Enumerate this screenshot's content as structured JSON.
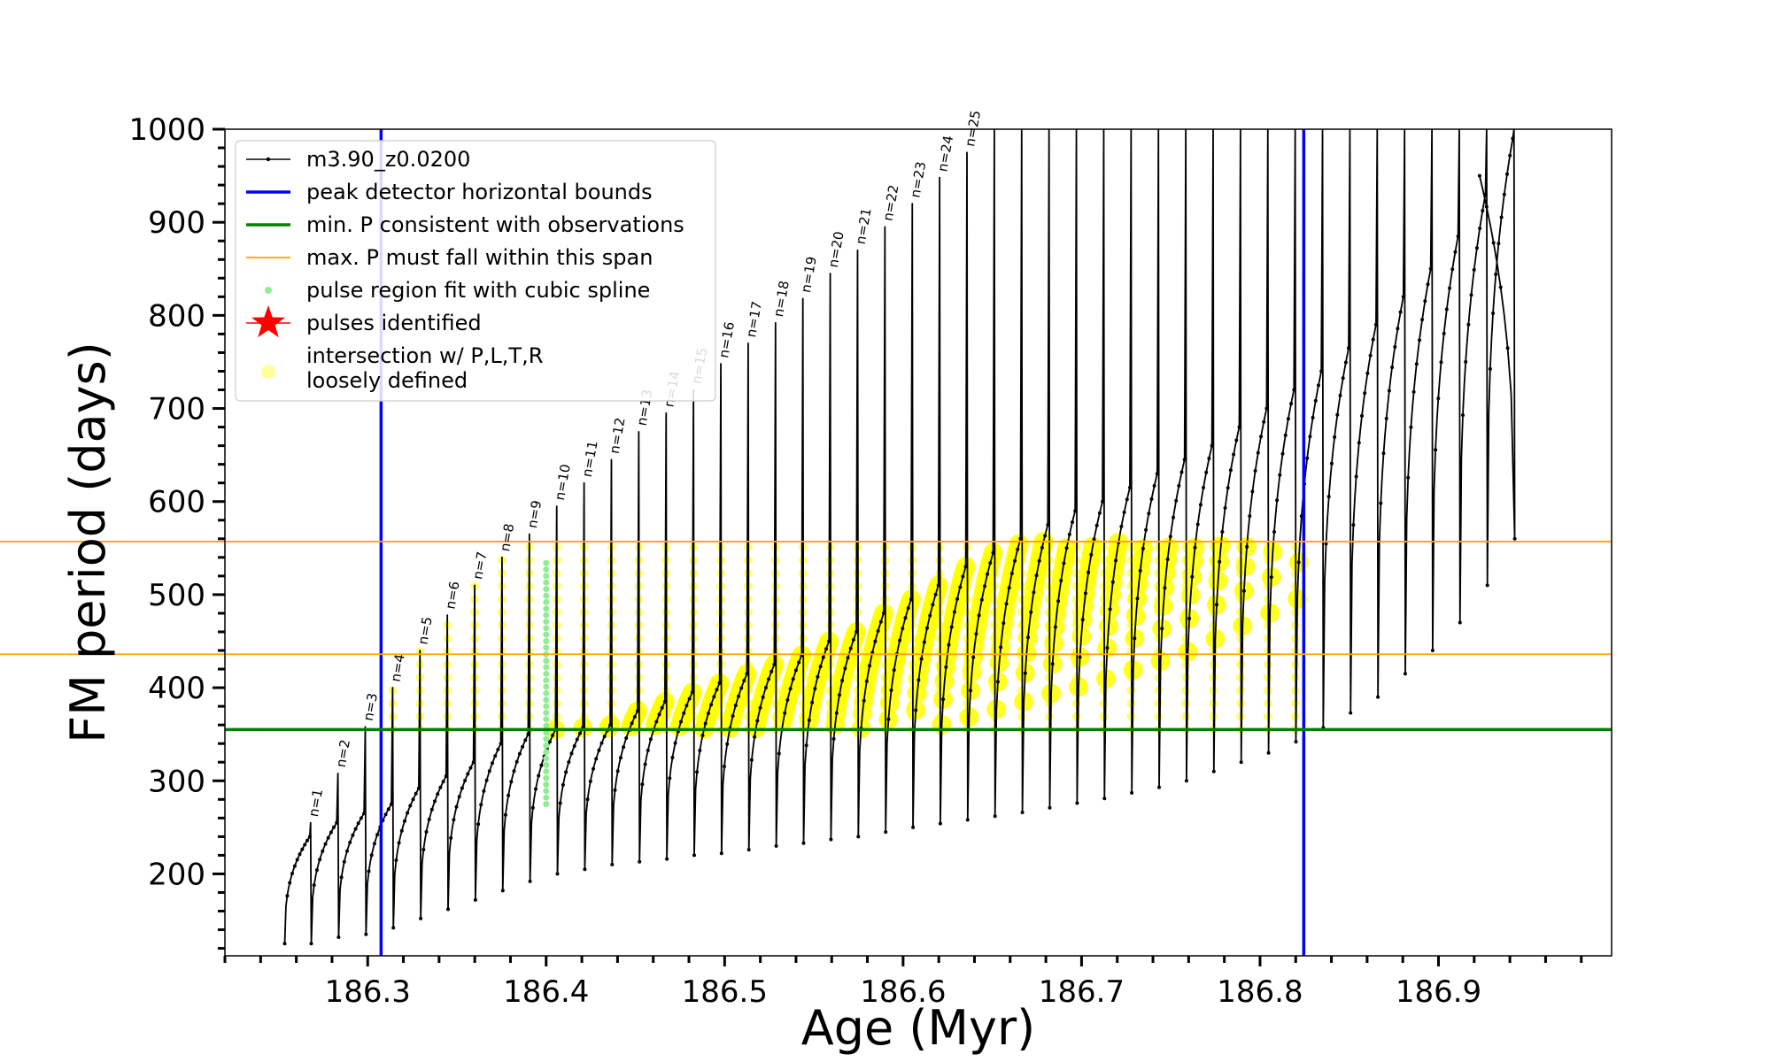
{
  "chart_data": {
    "type": "line",
    "title": "",
    "xlabel": "Age (Myr)",
    "ylabel": "FM period (days)",
    "xlim": [
      186.22,
      186.997
    ],
    "ylim": [
      112,
      1000
    ],
    "x_ticks": [
      186.3,
      186.4,
      186.5,
      186.6,
      186.7,
      186.8,
      186.9
    ],
    "y_ticks": [
      200,
      300,
      400,
      500,
      600,
      700,
      800,
      900,
      1000
    ],
    "x_tick_labels": [
      "186.3",
      "186.4",
      "186.5",
      "186.6",
      "186.7",
      "186.8",
      "186.9"
    ],
    "y_tick_labels": [
      "200",
      "300",
      "400",
      "500",
      "600",
      "700",
      "800",
      "900",
      "1000"
    ],
    "grid": false,
    "legend_position": "top-left",
    "colors": {
      "model": "#000000",
      "peak_bounds": "#0000ff",
      "min_p": "#008000",
      "max_p_span": "#ffa500",
      "spline_fit": "#90ee90",
      "pulses_identified": "#ff0000",
      "intersection": "#ffff00"
    },
    "legend": [
      {
        "label": "m3.90_z0.0200",
        "marker": "line-dot",
        "color": "#000000"
      },
      {
        "label": "peak detector horizontal bounds",
        "marker": "line",
        "color": "#0000ff"
      },
      {
        "label": "min. P consistent with observations",
        "marker": "line",
        "color": "#008000"
      },
      {
        "label": "max. P must fall within this span",
        "marker": "thin-line",
        "color": "#ffa500"
      },
      {
        "label": "pulse region fit with cubic spline",
        "marker": "dot",
        "color": "#90ee90"
      },
      {
        "label": "pulses identified",
        "marker": "star",
        "color": "#ff0000"
      },
      {
        "label": "intersection w/ P,L,T,R",
        "label2": "loosely defined",
        "marker": "circle",
        "color": "#ffff99"
      }
    ],
    "vertical_lines": [
      186.3075,
      186.8245
    ],
    "min_p_line": 355,
    "max_p_span": [
      436,
      557
    ],
    "spline_fit_pulse_x": 186.4,
    "spline_fit_range": [
      275,
      540
    ],
    "pulse_labels": [
      "n=1",
      "n=2",
      "n=3",
      "n=4",
      "n=5",
      "n=6",
      "n=7",
      "n=8",
      "n=9",
      "n=10",
      "n=11",
      "n=12",
      "n=13",
      "n=14",
      "n=15",
      "n=16",
      "n=17",
      "n=18",
      "n=19",
      "n=20",
      "n=21",
      "n=22",
      "n=23",
      "n=24",
      "n=25"
    ],
    "series": [
      {
        "name": "m3.90_z0.0200",
        "pulse_x_first": 186.268,
        "pulse_spacing": 0.015325,
        "pulse_count": 45,
        "initial_pulse": {
          "start_x": 186.2535,
          "start_y": 125,
          "peak_y": 240
        },
        "baseline_y": [
          125,
          132,
          135,
          142,
          152,
          162,
          172,
          182,
          192,
          200,
          205,
          210,
          213,
          216,
          220,
          222,
          226,
          230,
          233,
          237,
          240,
          245,
          250,
          254,
          258,
          262,
          266,
          271,
          276,
          281,
          287,
          293,
          300,
          310,
          320,
          330,
          342,
          357,
          373,
          390,
          415,
          440,
          470,
          510,
          560
        ],
        "cycle_peak_y": [
          255,
          265,
          275,
          292,
          305,
          320,
          340,
          350,
          355,
          357,
          360,
          375,
          385,
          395,
          405,
          415,
          425,
          435,
          450,
          460,
          480,
          495,
          510,
          530,
          545,
          560,
          575,
          590,
          600,
          615,
          630,
          645,
          660,
          680,
          700,
          720,
          740,
          765,
          790,
          820,
          850,
          885,
          930,
          990,
          1050
        ],
        "spike_y": [
          255,
          308,
          358,
          400,
          440,
          478,
          510,
          540,
          565,
          595,
          620,
          645,
          675,
          695,
          720,
          748,
          770,
          792,
          818,
          845,
          870,
          895,
          920,
          948,
          975,
          1000,
          1000,
          1000,
          1000,
          1000,
          1000,
          1000,
          1000,
          1000,
          1000,
          1000,
          1000,
          1000,
          1000,
          1000,
          1000,
          1000,
          1000,
          1000,
          1000
        ],
        "end_x": 186.923,
        "end_y": 950
      }
    ]
  }
}
